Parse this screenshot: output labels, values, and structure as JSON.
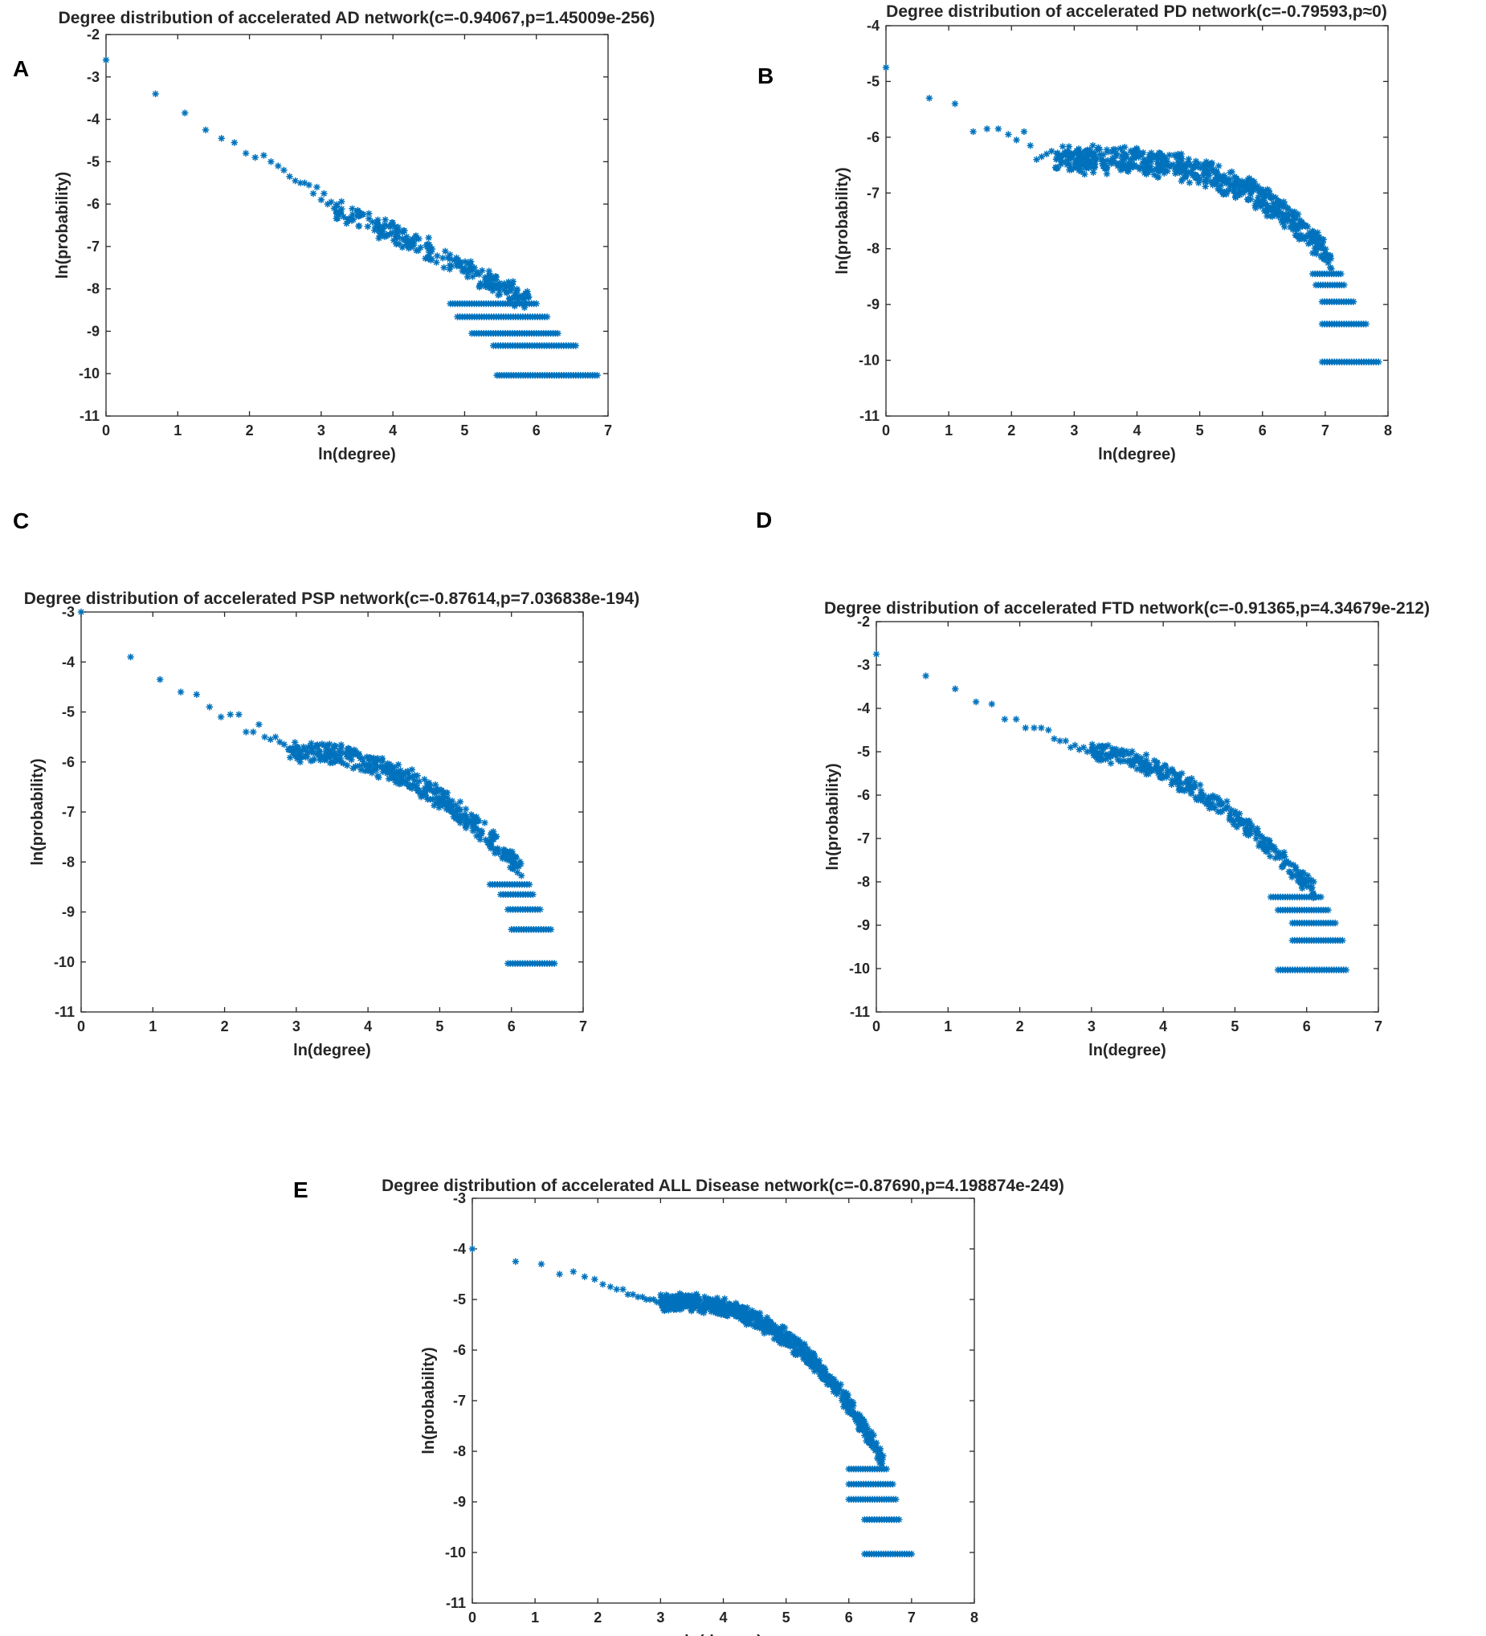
{
  "figure": {
    "marker_color": "#0072BD",
    "axis_color": "#262626",
    "marker": "asterisk"
  },
  "chart_data": [
    {
      "panel": "A",
      "type": "scatter",
      "title": "Degree distribution of accelerated AD network(c=-0.94067,p=1.45009e-256)",
      "xlabel": "ln(degree)",
      "ylabel": "ln(probability)",
      "xlim": [
        0,
        7
      ],
      "ylim": [
        -11,
        -2
      ],
      "xticks": [
        0,
        1,
        2,
        3,
        4,
        5,
        6,
        7
      ],
      "yticks": [
        -11,
        -10,
        -9,
        -8,
        -7,
        -6,
        -5,
        -4,
        -3,
        -2
      ],
      "x": [
        0,
        0.69,
        1.1,
        1.39,
        1.61,
        1.79,
        1.95,
        2.08,
        2.2,
        2.3,
        2.4,
        2.48,
        2.56,
        2.64,
        2.71,
        2.77,
        2.83,
        2.89,
        2.94,
        3.0,
        3.04,
        3.09,
        3.14,
        3.18,
        3.22,
        3.26
      ],
      "y": [
        -2.6,
        -3.4,
        -3.85,
        -4.25,
        -4.45,
        -4.55,
        -4.8,
        -4.9,
        -4.85,
        -5.0,
        -5.1,
        -5.2,
        -5.35,
        -5.45,
        -5.5,
        -5.5,
        -5.55,
        -5.75,
        -5.6,
        -5.9,
        -5.75,
        -6.0,
        -5.95,
        -6.1,
        -6.05,
        -6.2
      ],
      "curve": {
        "x_start": 3.2,
        "x_end": 5.9,
        "y_start": -6.1,
        "y_end": -8.3,
        "exp": 1.1,
        "spread": 0.6,
        "n": 240
      },
      "bands": [
        {
          "y": -8.35,
          "x_from": 4.8,
          "x_to": 6.0
        },
        {
          "y": -8.66,
          "x_from": 4.9,
          "x_to": 6.15
        },
        {
          "y": -9.05,
          "x_from": 5.1,
          "x_to": 6.3
        },
        {
          "y": -9.34,
          "x_from": 5.4,
          "x_to": 6.55
        },
        {
          "y": -10.04,
          "x_from": 5.45,
          "x_to": 6.85
        }
      ]
    },
    {
      "panel": "B",
      "type": "scatter",
      "title": "Degree distribution of accelerated PD network(c=-0.79593,p≈0)",
      "xlabel": "ln(degree)",
      "ylabel": "ln(probability)",
      "xlim": [
        0,
        8
      ],
      "ylim": [
        -11,
        -4
      ],
      "xticks": [
        0,
        1,
        2,
        3,
        4,
        5,
        6,
        7,
        8
      ],
      "yticks": [
        -11,
        -10,
        -9,
        -8,
        -7,
        -6,
        -5,
        -4
      ],
      "x": [
        0,
        0.69,
        1.1,
        1.39,
        1.61,
        1.79,
        1.95,
        2.08,
        2.2,
        2.3,
        2.4,
        2.48,
        2.56,
        2.64,
        2.71
      ],
      "y": [
        -4.75,
        -5.3,
        -5.4,
        -5.9,
        -5.85,
        -5.85,
        -5.95,
        -6.05,
        -5.9,
        -6.15,
        -6.4,
        -6.35,
        -6.3,
        -6.25,
        -6.55
      ],
      "curve": {
        "x_start": 2.7,
        "x_end": 7.1,
        "y_start": -6.4,
        "y_end": -8.2,
        "exp": 3.2,
        "spread": 0.55,
        "n": 620
      },
      "bands": [
        {
          "y": -8.45,
          "x_from": 6.8,
          "x_to": 7.25
        },
        {
          "y": -8.65,
          "x_from": 6.85,
          "x_to": 7.3
        },
        {
          "y": -8.95,
          "x_from": 6.95,
          "x_to": 7.45
        },
        {
          "y": -9.35,
          "x_from": 6.95,
          "x_to": 7.65
        },
        {
          "y": -10.03,
          "x_from": 6.95,
          "x_to": 7.85
        }
      ]
    },
    {
      "panel": "C",
      "type": "scatter",
      "title": "Degree distribution of accelerated PSP network(c=-0.87614,p=7.036838e-194)",
      "xlabel": "ln(degree)",
      "ylabel": "ln(probability)",
      "xlim": [
        0,
        7
      ],
      "ylim": [
        -11,
        -3
      ],
      "xticks": [
        0,
        1,
        2,
        3,
        4,
        5,
        6,
        7
      ],
      "yticks": [
        -11,
        -10,
        -9,
        -8,
        -7,
        -6,
        -5,
        -4,
        -3
      ],
      "x": [
        0,
        0.69,
        1.1,
        1.39,
        1.61,
        1.79,
        1.95,
        2.08,
        2.2,
        2.3,
        2.4,
        2.48,
        2.56,
        2.64,
        2.71,
        2.77,
        2.83,
        2.89
      ],
      "y": [
        -3.0,
        -3.9,
        -4.35,
        -4.6,
        -4.65,
        -4.9,
        -5.1,
        -5.05,
        -5.05,
        -5.4,
        -5.4,
        -5.25,
        -5.5,
        -5.55,
        -5.5,
        -5.6,
        -5.65,
        -5.75
      ],
      "curve": {
        "x_start": 2.9,
        "x_end": 6.15,
        "y_start": -5.8,
        "y_end": -8.2,
        "exp": 2.2,
        "spread": 0.5,
        "n": 400
      },
      "bands": [
        {
          "y": -8.45,
          "x_from": 5.7,
          "x_to": 6.25
        },
        {
          "y": -8.65,
          "x_from": 5.85,
          "x_to": 6.3
        },
        {
          "y": -8.95,
          "x_from": 5.95,
          "x_to": 6.4
        },
        {
          "y": -9.35,
          "x_from": 6.0,
          "x_to": 6.55
        },
        {
          "y": -10.03,
          "x_from": 5.95,
          "x_to": 6.6
        }
      ]
    },
    {
      "panel": "D",
      "type": "scatter",
      "title": "Degree distribution of accelerated FTD network(c=-0.91365,p=4.34679e-212)",
      "xlabel": "ln(degree)",
      "ylabel": "ln(probability)",
      "xlim": [
        0,
        7
      ],
      "ylim": [
        -11,
        -2
      ],
      "xticks": [
        0,
        1,
        2,
        3,
        4,
        5,
        6,
        7
      ],
      "yticks": [
        -11,
        -10,
        -9,
        -8,
        -7,
        -6,
        -5,
        -4,
        -3,
        -2
      ],
      "x": [
        0,
        0.69,
        1.1,
        1.39,
        1.61,
        1.79,
        1.95,
        2.08,
        2.2,
        2.3,
        2.4,
        2.48,
        2.56,
        2.64,
        2.71,
        2.77,
        2.83,
        2.89,
        2.94,
        3.0
      ],
      "y": [
        -2.75,
        -3.25,
        -3.55,
        -3.85,
        -3.9,
        -4.25,
        -4.25,
        -4.45,
        -4.45,
        -4.45,
        -4.5,
        -4.7,
        -4.75,
        -4.75,
        -4.9,
        -4.85,
        -4.95,
        -4.9,
        -5.0,
        -4.95
      ],
      "curve": {
        "x_start": 3.0,
        "x_end": 6.1,
        "y_start": -5.0,
        "y_end": -8.2,
        "exp": 1.7,
        "spread": 0.5,
        "n": 340
      },
      "bands": [
        {
          "y": -8.35,
          "x_from": 5.5,
          "x_to": 6.2
        },
        {
          "y": -8.65,
          "x_from": 5.6,
          "x_to": 6.3
        },
        {
          "y": -8.95,
          "x_from": 5.8,
          "x_to": 6.4
        },
        {
          "y": -9.35,
          "x_from": 5.8,
          "x_to": 6.5
        },
        {
          "y": -10.03,
          "x_from": 5.6,
          "x_to": 6.55
        }
      ]
    },
    {
      "panel": "E",
      "type": "scatter",
      "title": "Degree distribution of accelerated ALL Disease network(c=-0.87690,p=4.198874e-249)",
      "xlabel": "ln(degree)",
      "ylabel": "ln(probability)",
      "xlim": [
        0,
        8
      ],
      "ylim": [
        -11,
        -3
      ],
      "xticks": [
        0,
        1,
        2,
        3,
        4,
        5,
        6,
        7,
        8
      ],
      "yticks": [
        -11,
        -10,
        -9,
        -8,
        -7,
        -6,
        -5,
        -4,
        -3
      ],
      "x": [
        0,
        0.69,
        1.1,
        1.39,
        1.61,
        1.79,
        1.95,
        2.08,
        2.2,
        2.3,
        2.4,
        2.48,
        2.56,
        2.64,
        2.71,
        2.77,
        2.83,
        2.89,
        2.94,
        3.0
      ],
      "y": [
        -4.0,
        -4.25,
        -4.3,
        -4.5,
        -4.45,
        -4.55,
        -4.6,
        -4.7,
        -4.75,
        -4.8,
        -4.8,
        -4.9,
        -4.9,
        -4.95,
        -4.95,
        -5.0,
        -5.0,
        -5.0,
        -5.05,
        -5.05
      ],
      "curve": {
        "x_start": 3.0,
        "x_end": 6.55,
        "y_start": -5.05,
        "y_end": -8.2,
        "exp": 2.6,
        "spread": 0.4,
        "n": 720
      },
      "bands": [
        {
          "y": -8.35,
          "x_from": 6.0,
          "x_to": 6.6
        },
        {
          "y": -8.65,
          "x_from": 6.0,
          "x_to": 6.7
        },
        {
          "y": -8.95,
          "x_from": 6.0,
          "x_to": 6.75
        },
        {
          "y": -9.35,
          "x_from": 6.25,
          "x_to": 6.8
        },
        {
          "y": -10.03,
          "x_from": 6.25,
          "x_to": 7.0
        }
      ]
    }
  ]
}
